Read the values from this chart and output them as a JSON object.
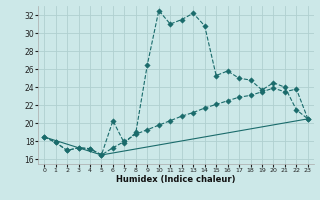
{
  "xlabel": "Humidex (Indice chaleur)",
  "background_color": "#cce8e8",
  "grid_color": "#b0d0d0",
  "line_color": "#1a6b6b",
  "xlim": [
    -0.5,
    23.5
  ],
  "ylim": [
    15.5,
    33.0
  ],
  "xticks": [
    0,
    1,
    2,
    3,
    4,
    5,
    6,
    7,
    8,
    9,
    10,
    11,
    12,
    13,
    14,
    15,
    16,
    17,
    18,
    19,
    20,
    21,
    22,
    23
  ],
  "yticks": [
    16,
    18,
    20,
    22,
    24,
    26,
    28,
    30,
    32
  ],
  "curve1_x": [
    0,
    1,
    2,
    3,
    4,
    5,
    6,
    7,
    8,
    9,
    10,
    11,
    12,
    13,
    14,
    15,
    16,
    17,
    18,
    19,
    20,
    21,
    22,
    23
  ],
  "curve1_y": [
    18.5,
    17.9,
    17.0,
    17.3,
    17.2,
    16.5,
    20.3,
    17.8,
    19.0,
    26.5,
    32.5,
    31.0,
    31.5,
    32.2,
    30.8,
    25.3,
    25.8,
    25.0,
    24.8,
    23.7,
    24.5,
    24.0,
    21.5,
    20.5
  ],
  "curve2_x": [
    0,
    1,
    2,
    3,
    4,
    5,
    6,
    7,
    8,
    9,
    10,
    11,
    12,
    13,
    14,
    15,
    16,
    17,
    18,
    19,
    20,
    21,
    22,
    23
  ],
  "curve2_y": [
    18.5,
    17.9,
    17.0,
    17.3,
    17.2,
    16.5,
    17.3,
    18.0,
    18.8,
    19.3,
    19.8,
    20.3,
    20.8,
    21.2,
    21.7,
    22.1,
    22.5,
    22.9,
    23.1,
    23.5,
    23.9,
    23.5,
    23.8,
    20.5
  ],
  "curve3_x": [
    0,
    5,
    23
  ],
  "curve3_y": [
    18.5,
    16.5,
    20.5
  ],
  "lw": 0.8,
  "ms": 2.8
}
